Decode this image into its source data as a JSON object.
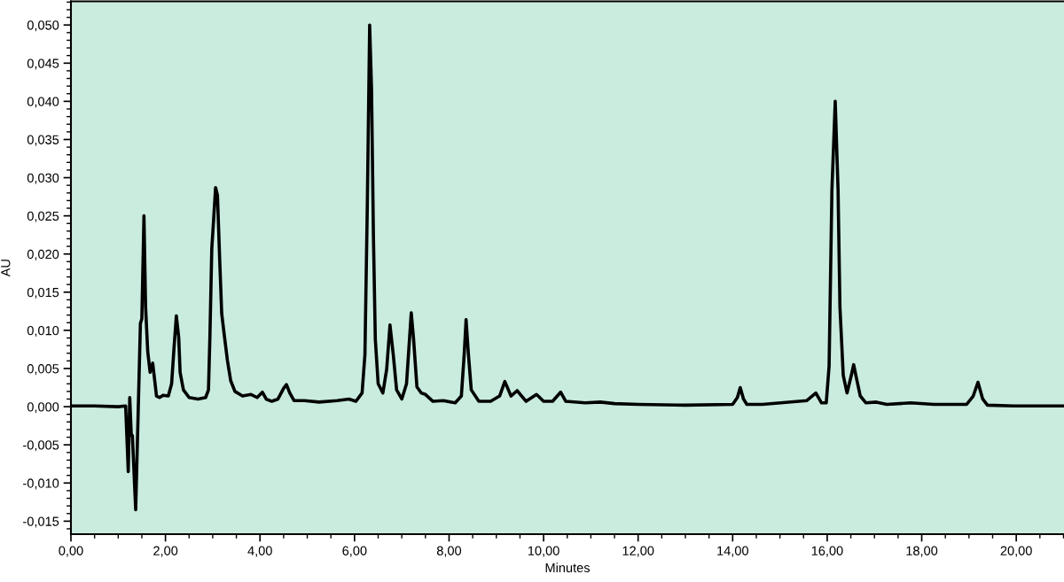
{
  "chart_data": {
    "type": "line",
    "xlabel": "Minutes",
    "ylabel": "AU",
    "series": [
      {
        "color": "#000000",
        "x": [
          0,
          0.5,
          1.0,
          1.157,
          1.213,
          1.244,
          1.276,
          1.3,
          1.37,
          1.47,
          1.5,
          1.545,
          1.58,
          1.625,
          1.675,
          1.73,
          1.76,
          1.81,
          1.875,
          1.95,
          2.06,
          2.13,
          2.18,
          2.23,
          2.28,
          2.31,
          2.38,
          2.5,
          2.69,
          2.85,
          2.91,
          2.94,
          2.98,
          3.02,
          3.06,
          3.1,
          3.15,
          3.19,
          3.25,
          3.31,
          3.38,
          3.47,
          3.63,
          3.81,
          3.94,
          4.05,
          4.13,
          4.25,
          4.38,
          4.5,
          4.56,
          4.63,
          4.72,
          4.94,
          5.25,
          5.63,
          5.88,
          6.03,
          6.16,
          6.22,
          6.27,
          6.32,
          6.36,
          6.4,
          6.44,
          6.5,
          6.6,
          6.68,
          6.75,
          6.82,
          6.89,
          7.0,
          7.1,
          7.2,
          7.25,
          7.32,
          7.41,
          7.5,
          7.66,
          7.88,
          8.13,
          8.26,
          8.32,
          8.36,
          8.41,
          8.47,
          8.63,
          8.88,
          9.07,
          9.18,
          9.31,
          9.44,
          9.63,
          9.85,
          10.0,
          10.19,
          10.36,
          10.47,
          10.88,
          11.2,
          11.5,
          12.0,
          13.0,
          14.0,
          14.1,
          14.16,
          14.23,
          14.3,
          14.63,
          15.57,
          15.76,
          15.88,
          15.98,
          16.04,
          16.1,
          16.17,
          16.23,
          16.27,
          16.34,
          16.42,
          16.51,
          16.56,
          16.62,
          16.7,
          16.82,
          17.04,
          17.26,
          17.76,
          18.26,
          18.95,
          19.09,
          19.19,
          19.29,
          19.39,
          19.95,
          21.0
        ],
        "values": [
          0.0001,
          0.0001,
          0.0,
          0.0001,
          -0.0085,
          0.0012,
          -0.0036,
          -0.0038,
          -0.0135,
          0.0109,
          0.0115,
          0.025,
          0.013,
          0.0072,
          0.0045,
          0.0057,
          0.0041,
          0.0014,
          0.0012,
          0.0015,
          0.0014,
          0.003,
          0.0076,
          0.0119,
          0.0091,
          0.0045,
          0.0022,
          0.0012,
          0.001,
          0.0012,
          0.0022,
          0.0091,
          0.0207,
          0.0246,
          0.0287,
          0.0277,
          0.0188,
          0.0122,
          0.0091,
          0.0061,
          0.0034,
          0.002,
          0.0014,
          0.0016,
          0.0012,
          0.0019,
          0.001,
          0.0007,
          0.001,
          0.0024,
          0.0029,
          0.0018,
          0.0008,
          0.0008,
          0.0006,
          0.0008,
          0.001,
          0.0007,
          0.0018,
          0.0068,
          0.0262,
          0.05,
          0.0416,
          0.0223,
          0.0088,
          0.003,
          0.0018,
          0.0049,
          0.0107,
          0.0068,
          0.0022,
          0.001,
          0.003,
          0.0123,
          0.0088,
          0.0026,
          0.0018,
          0.0016,
          0.0007,
          0.0008,
          0.0005,
          0.0014,
          0.0068,
          0.0114,
          0.0068,
          0.0022,
          0.0007,
          0.0007,
          0.0014,
          0.0033,
          0.0014,
          0.0021,
          0.0007,
          0.0016,
          0.0007,
          0.0007,
          0.0019,
          0.0007,
          0.0005,
          0.0006,
          0.0004,
          0.0003,
          0.0002,
          0.0003,
          0.0012,
          0.0025,
          0.001,
          0.0003,
          0.0003,
          0.0008,
          0.0018,
          0.0005,
          0.0005,
          0.0053,
          0.0284,
          0.04,
          0.0284,
          0.013,
          0.0041,
          0.0018,
          0.0041,
          0.0055,
          0.0037,
          0.0014,
          0.0005,
          0.0006,
          0.0003,
          0.0005,
          0.0003,
          0.0003,
          0.0014,
          0.0032,
          0.001,
          0.0002,
          0.0001,
          0.0001
        ]
      }
    ],
    "xlim": [
      0,
      21.01
    ],
    "ylim": [
      -0.0167,
      0.0531
    ],
    "xticks": [
      {
        "value": 0,
        "label": "0,00"
      },
      {
        "value": 0.5,
        "label": null
      },
      {
        "value": 1,
        "label": null
      },
      {
        "value": 1.5,
        "label": null
      },
      {
        "value": 2,
        "label": "2,00"
      },
      {
        "value": 2.5,
        "label": null
      },
      {
        "value": 3,
        "label": null
      },
      {
        "value": 3.5,
        "label": null
      },
      {
        "value": 4,
        "label": "4,00"
      },
      {
        "value": 4.5,
        "label": null
      },
      {
        "value": 5,
        "label": null
      },
      {
        "value": 5.5,
        "label": null
      },
      {
        "value": 6,
        "label": "6,00"
      },
      {
        "value": 6.5,
        "label": null
      },
      {
        "value": 7,
        "label": null
      },
      {
        "value": 7.5,
        "label": null
      },
      {
        "value": 8,
        "label": "8,00"
      },
      {
        "value": 8.5,
        "label": null
      },
      {
        "value": 9,
        "label": null
      },
      {
        "value": 9.5,
        "label": null
      },
      {
        "value": 10,
        "label": "10,00"
      },
      {
        "value": 10.5,
        "label": null
      },
      {
        "value": 11,
        "label": null
      },
      {
        "value": 11.5,
        "label": null
      },
      {
        "value": 12,
        "label": "12,00"
      },
      {
        "value": 12.5,
        "label": null
      },
      {
        "value": 13,
        "label": null
      },
      {
        "value": 13.5,
        "label": null
      },
      {
        "value": 14,
        "label": "14,00"
      },
      {
        "value": 14.5,
        "label": null
      },
      {
        "value": 15,
        "label": null
      },
      {
        "value": 15.5,
        "label": null
      },
      {
        "value": 16,
        "label": "16,00"
      },
      {
        "value": 16.5,
        "label": null
      },
      {
        "value": 17,
        "label": null
      },
      {
        "value": 17.5,
        "label": null
      },
      {
        "value": 18,
        "label": "18,00"
      },
      {
        "value": 18.5,
        "label": null
      },
      {
        "value": 19,
        "label": null
      },
      {
        "value": 19.5,
        "label": null
      },
      {
        "value": 20,
        "label": "20,00"
      },
      {
        "value": 20.5,
        "label": null
      },
      {
        "value": 21,
        "label": null
      }
    ],
    "yticks": [
      {
        "value": -0.016,
        "label": null
      },
      {
        "value": -0.015,
        "label": "-0,015"
      },
      {
        "value": -0.014,
        "label": null
      },
      {
        "value": -0.013,
        "label": null
      },
      {
        "value": -0.012,
        "label": null
      },
      {
        "value": -0.011,
        "label": null
      },
      {
        "value": -0.01,
        "label": "-0,010"
      },
      {
        "value": -0.009,
        "label": null
      },
      {
        "value": -0.008,
        "label": null
      },
      {
        "value": -0.007,
        "label": null
      },
      {
        "value": -0.006,
        "label": null
      },
      {
        "value": -0.005,
        "label": "-0,005"
      },
      {
        "value": -0.004,
        "label": null
      },
      {
        "value": -0.003,
        "label": null
      },
      {
        "value": -0.002,
        "label": null
      },
      {
        "value": -0.001,
        "label": null
      },
      {
        "value": 0,
        "label": "0,000"
      },
      {
        "value": 0.001,
        "label": null
      },
      {
        "value": 0.002,
        "label": null
      },
      {
        "value": 0.003,
        "label": null
      },
      {
        "value": 0.004,
        "label": null
      },
      {
        "value": 0.005,
        "label": "0,005"
      },
      {
        "value": 0.006,
        "label": null
      },
      {
        "value": 0.007,
        "label": null
      },
      {
        "value": 0.008,
        "label": null
      },
      {
        "value": 0.009,
        "label": null
      },
      {
        "value": 0.01,
        "label": "0,010"
      },
      {
        "value": 0.011,
        "label": null
      },
      {
        "value": 0.012,
        "label": null
      },
      {
        "value": 0.013,
        "label": null
      },
      {
        "value": 0.014,
        "label": null
      },
      {
        "value": 0.015,
        "label": "0,015"
      },
      {
        "value": 0.016,
        "label": null
      },
      {
        "value": 0.017,
        "label": null
      },
      {
        "value": 0.018,
        "label": null
      },
      {
        "value": 0.019,
        "label": null
      },
      {
        "value": 0.02,
        "label": "0,020"
      },
      {
        "value": 0.021,
        "label": null
      },
      {
        "value": 0.022,
        "label": null
      },
      {
        "value": 0.023,
        "label": null
      },
      {
        "value": 0.024,
        "label": null
      },
      {
        "value": 0.025,
        "label": "0,025"
      },
      {
        "value": 0.026,
        "label": null
      },
      {
        "value": 0.027,
        "label": null
      },
      {
        "value": 0.028,
        "label": null
      },
      {
        "value": 0.029,
        "label": null
      },
      {
        "value": 0.03,
        "label": "0,030"
      },
      {
        "value": 0.031,
        "label": null
      },
      {
        "value": 0.032,
        "label": null
      },
      {
        "value": 0.033,
        "label": null
      },
      {
        "value": 0.034,
        "label": null
      },
      {
        "value": 0.035,
        "label": "0,035"
      },
      {
        "value": 0.036,
        "label": null
      },
      {
        "value": 0.037,
        "label": null
      },
      {
        "value": 0.038,
        "label": null
      },
      {
        "value": 0.039,
        "label": null
      },
      {
        "value": 0.04,
        "label": "0,040"
      },
      {
        "value": 0.041,
        "label": null
      },
      {
        "value": 0.042,
        "label": null
      },
      {
        "value": 0.043,
        "label": null
      },
      {
        "value": 0.044,
        "label": null
      },
      {
        "value": 0.045,
        "label": "0,045"
      },
      {
        "value": 0.046,
        "label": null
      },
      {
        "value": 0.047,
        "label": null
      },
      {
        "value": 0.048,
        "label": null
      },
      {
        "value": 0.049,
        "label": null
      },
      {
        "value": 0.05,
        "label": "0,050"
      },
      {
        "value": 0.051,
        "label": null
      },
      {
        "value": 0.052,
        "label": null
      },
      {
        "value": 0.053,
        "label": null
      }
    ],
    "marker": "none",
    "line_style": "solid"
  }
}
